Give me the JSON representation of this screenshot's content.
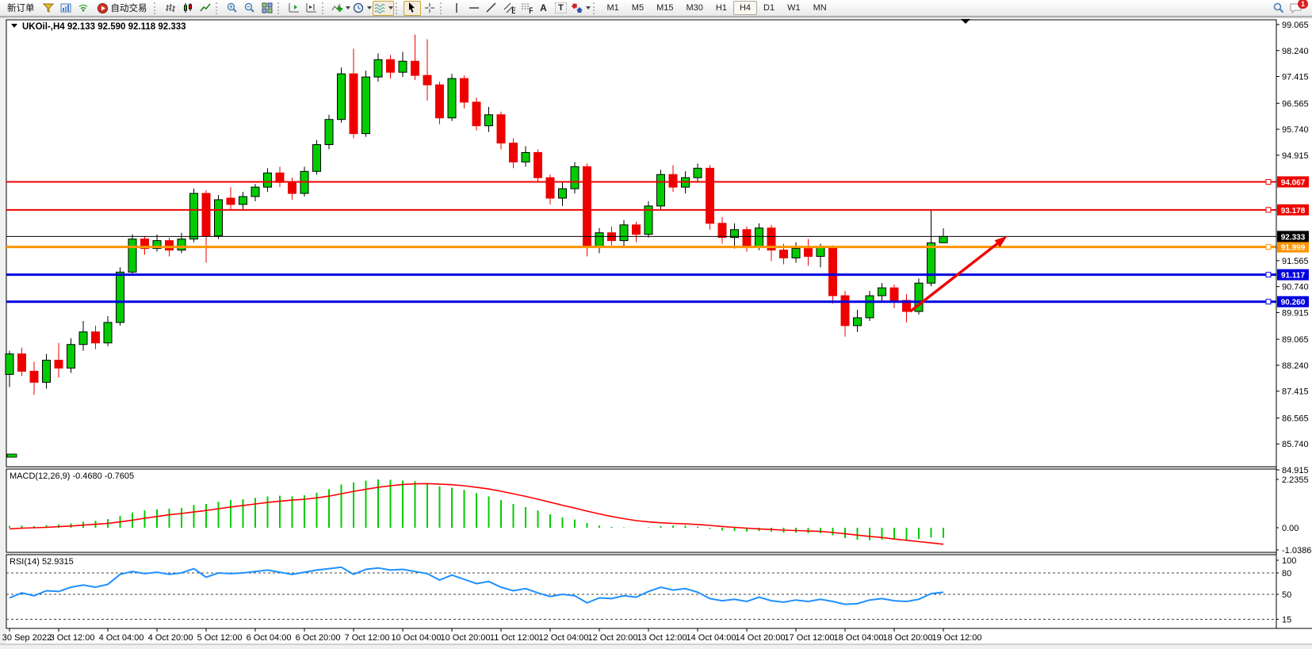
{
  "toolbar": {
    "new_order": "新订单",
    "auto_trading": "自动交易",
    "timeframes": [
      "M1",
      "M5",
      "M15",
      "M30",
      "H1",
      "H4",
      "D1",
      "W1",
      "MN"
    ],
    "active_timeframe": "H4",
    "badge_count": "1",
    "text_tool": "A",
    "label_tool": "T",
    "channel_tool": "E",
    "fibo_tool": "F"
  },
  "chart_data": {
    "type": "candlestick",
    "symbol": "UKOil-",
    "timeframe": "H4",
    "title_line": "UKOil-,H4  92.133 92.590 92.118 92.333",
    "ohlc_legend": {
      "open": 92.133,
      "high": 92.59,
      "low": 92.118,
      "close": 92.333
    },
    "ylim": [
      84.915,
      99.065
    ],
    "price_ticks": [
      "99.065",
      "98.240",
      "97.415",
      "96.565",
      "95.740",
      "94.915",
      "91.565",
      "90.740",
      "89.915",
      "89.065",
      "88.240",
      "87.415",
      "86.565",
      "85.740",
      "84.915"
    ],
    "x_labels": [
      "30 Sep 2022",
      "3 Oct 12:00",
      "4 Oct 04:00",
      "4 Oct 20:00",
      "5 Oct 12:00",
      "6 Oct 04:00",
      "6 Oct 20:00",
      "7 Oct 12:00",
      "10 Oct 04:00",
      "10 Oct 20:00",
      "11 Oct 12:00",
      "12 Oct 04:00",
      "12 Oct 20:00",
      "13 Oct 12:00",
      "14 Oct 04:00",
      "14 Oct 20:00",
      "17 Oct 12:00",
      "18 Oct 04:00",
      "18 Oct 20:00",
      "19 Oct 12:00"
    ],
    "bars_per_label": 4,
    "candles": [
      [
        87.95,
        88.7,
        87.55,
        88.6
      ],
      [
        88.6,
        88.8,
        87.9,
        88.05
      ],
      [
        88.05,
        88.35,
        87.3,
        87.7
      ],
      [
        87.7,
        88.6,
        87.5,
        88.4
      ],
      [
        88.4,
        88.95,
        87.85,
        88.15
      ],
      [
        88.15,
        89.1,
        88.0,
        88.9
      ],
      [
        88.9,
        89.65,
        88.7,
        89.3
      ],
      [
        89.3,
        89.5,
        88.75,
        88.95
      ],
      [
        88.95,
        89.8,
        88.85,
        89.6
      ],
      [
        89.6,
        91.35,
        89.5,
        91.2
      ],
      [
        91.2,
        92.4,
        91.1,
        92.25
      ],
      [
        92.25,
        92.35,
        91.75,
        91.95
      ],
      [
        91.95,
        92.4,
        91.85,
        92.2
      ],
      [
        92.2,
        92.3,
        91.7,
        91.9
      ],
      [
        91.9,
        92.45,
        91.8,
        92.25
      ],
      [
        92.25,
        93.85,
        92.15,
        93.7
      ],
      [
        93.7,
        93.8,
        91.5,
        92.35
      ],
      [
        92.35,
        93.65,
        92.25,
        93.5
      ],
      [
        93.55,
        93.9,
        93.2,
        93.35
      ],
      [
        93.35,
        93.75,
        93.15,
        93.6
      ],
      [
        93.6,
        94.0,
        93.45,
        93.9
      ],
      [
        93.9,
        94.5,
        93.75,
        94.35
      ],
      [
        94.35,
        94.55,
        93.9,
        94.05
      ],
      [
        94.05,
        94.2,
        93.5,
        93.7
      ],
      [
        93.7,
        94.55,
        93.6,
        94.4
      ],
      [
        94.4,
        95.4,
        94.3,
        95.25
      ],
      [
        95.25,
        96.2,
        95.1,
        96.05
      ],
      [
        96.05,
        97.7,
        95.95,
        97.5
      ],
      [
        97.5,
        98.3,
        95.45,
        95.6
      ],
      [
        95.6,
        97.6,
        95.5,
        97.4
      ],
      [
        97.4,
        98.15,
        97.25,
        97.95
      ],
      [
        97.95,
        98.1,
        97.35,
        97.55
      ],
      [
        97.55,
        98.2,
        97.4,
        97.9
      ],
      [
        97.9,
        98.75,
        97.3,
        97.45
      ],
      [
        97.45,
        98.6,
        96.65,
        97.15
      ],
      [
        97.15,
        97.25,
        95.9,
        96.1
      ],
      [
        96.1,
        97.5,
        96.0,
        97.35
      ],
      [
        97.35,
        97.45,
        96.4,
        96.6
      ],
      [
        96.6,
        96.75,
        95.7,
        95.85
      ],
      [
        95.85,
        96.45,
        95.65,
        96.2
      ],
      [
        96.2,
        96.3,
        95.1,
        95.3
      ],
      [
        95.3,
        95.45,
        94.5,
        94.7
      ],
      [
        94.7,
        95.2,
        94.55,
        95.0
      ],
      [
        95.0,
        95.1,
        94.05,
        94.2
      ],
      [
        94.2,
        94.3,
        93.35,
        93.55
      ],
      [
        93.55,
        94.05,
        93.3,
        93.85
      ],
      [
        93.85,
        94.7,
        93.7,
        94.55
      ],
      [
        94.55,
        94.65,
        91.7,
        92.0
      ],
      [
        92.0,
        92.6,
        91.8,
        92.45
      ],
      [
        92.45,
        92.65,
        92.05,
        92.2
      ],
      [
        92.2,
        92.85,
        92.0,
        92.7
      ],
      [
        92.7,
        92.8,
        92.15,
        92.4
      ],
      [
        92.4,
        93.45,
        92.3,
        93.3
      ],
      [
        93.3,
        94.45,
        93.2,
        94.3
      ],
      [
        94.3,
        94.6,
        93.75,
        93.9
      ],
      [
        93.9,
        94.4,
        93.7,
        94.2
      ],
      [
        94.2,
        94.65,
        94.05,
        94.5
      ],
      [
        94.5,
        94.6,
        92.55,
        92.75
      ],
      [
        92.75,
        92.95,
        92.1,
        92.3
      ],
      [
        92.3,
        92.75,
        91.95,
        92.55
      ],
      [
        92.55,
        92.65,
        91.85,
        92.0
      ],
      [
        92.0,
        92.75,
        91.9,
        92.6
      ],
      [
        92.6,
        92.7,
        91.55,
        91.9
      ],
      [
        91.9,
        92.1,
        91.45,
        91.65
      ],
      [
        91.65,
        92.15,
        91.5,
        91.95
      ],
      [
        91.95,
        92.25,
        91.4,
        91.7
      ],
      [
        91.7,
        92.1,
        91.35,
        92.0
      ],
      [
        92.0,
        92.05,
        90.2,
        90.45
      ],
      [
        90.45,
        90.6,
        89.15,
        89.5
      ],
      [
        89.5,
        90.0,
        89.3,
        89.75
      ],
      [
        89.75,
        90.6,
        89.65,
        90.45
      ],
      [
        90.45,
        90.85,
        90.25,
        90.7
      ],
      [
        90.7,
        90.8,
        90.05,
        90.3
      ],
      [
        90.3,
        90.5,
        89.6,
        89.95
      ],
      [
        89.95,
        91.0,
        89.85,
        90.85
      ],
      [
        90.85,
        93.16,
        90.75,
        92.13
      ],
      [
        92.133,
        92.59,
        92.118,
        92.333
      ]
    ],
    "hlines": [
      {
        "price": 94.067,
        "tag": "94.067",
        "color": "#F00000",
        "width": 2
      },
      {
        "price": 93.178,
        "tag": "93.178",
        "color": "#F00000",
        "width": 2
      },
      {
        "price": 91.999,
        "tag": "91.999",
        "color": "#FF9500",
        "width": 3
      },
      {
        "price": 91.117,
        "tag": "91.117",
        "color": "#0000E0",
        "width": 3
      },
      {
        "price": 90.26,
        "tag": "90.260",
        "color": "#0000E0",
        "width": 3
      }
    ],
    "current_price": {
      "price": 92.333,
      "tag": "92.333",
      "color": "#000000"
    },
    "indicators": {
      "macd": {
        "label": "MACD(12,26,9) -0.4680 -0.7605",
        "params": "12,26,9",
        "main_value": -0.468,
        "signal_value": -0.7605,
        "axis_ticks": [
          "2.2355",
          "0.00",
          "-1.0386"
        ],
        "histogram": [
          0.08,
          0.1,
          0.08,
          0.12,
          0.15,
          0.2,
          0.28,
          0.32,
          0.4,
          0.55,
          0.7,
          0.8,
          0.85,
          0.88,
          0.92,
          1.05,
          1.1,
          1.2,
          1.28,
          1.32,
          1.38,
          1.45,
          1.48,
          1.45,
          1.5,
          1.62,
          1.78,
          2.0,
          2.1,
          2.18,
          2.2355,
          2.22,
          2.18,
          2.15,
          2.05,
          1.92,
          1.85,
          1.75,
          1.6,
          1.45,
          1.28,
          1.1,
          0.95,
          0.8,
          0.62,
          0.48,
          0.38,
          0.22,
          0.1,
          0.04,
          0.02,
          0.0,
          0.02,
          0.08,
          0.1,
          0.1,
          0.05,
          -0.05,
          -0.12,
          -0.15,
          -0.18,
          -0.15,
          -0.18,
          -0.22,
          -0.22,
          -0.25,
          -0.25,
          -0.35,
          -0.48,
          -0.55,
          -0.58,
          -0.55,
          -0.52,
          -0.55,
          -0.52,
          -0.45,
          -0.468
        ],
        "signal": [
          -0.05,
          -0.02,
          0.0,
          0.02,
          0.05,
          0.08,
          0.12,
          0.16,
          0.2,
          0.27,
          0.35,
          0.44,
          0.52,
          0.6,
          0.66,
          0.73,
          0.8,
          0.88,
          0.96,
          1.03,
          1.1,
          1.17,
          1.23,
          1.28,
          1.32,
          1.38,
          1.46,
          1.57,
          1.68,
          1.78,
          1.87,
          1.94,
          2.0,
          2.03,
          2.04,
          2.02,
          1.99,
          1.94,
          1.87,
          1.79,
          1.69,
          1.57,
          1.45,
          1.32,
          1.18,
          1.04,
          0.91,
          0.77,
          0.64,
          0.52,
          0.42,
          0.33,
          0.27,
          0.23,
          0.2,
          0.18,
          0.15,
          0.11,
          0.06,
          0.02,
          -0.02,
          -0.05,
          -0.08,
          -0.11,
          -0.13,
          -0.15,
          -0.17,
          -0.22,
          -0.28,
          -0.34,
          -0.4,
          -0.45,
          -0.52,
          -0.58,
          -0.64,
          -0.7,
          -0.7605
        ]
      },
      "rsi": {
        "label": "RSI(14) 52.9315",
        "period": 14,
        "value": 52.9315,
        "axis_ticks": [
          "100",
          "80",
          "50",
          "15"
        ],
        "levels": [
          80,
          50,
          15
        ],
        "values": [
          45,
          52,
          48,
          55,
          54,
          60,
          63,
          60,
          64,
          78,
          82,
          79,
          81,
          78,
          80,
          86,
          74,
          80,
          79,
          80,
          82,
          84,
          81,
          78,
          81,
          84,
          86,
          88,
          78,
          85,
          87,
          84,
          85,
          82,
          79,
          70,
          77,
          71,
          65,
          68,
          60,
          55,
          58,
          52,
          47,
          50,
          48,
          38,
          45,
          44,
          48,
          46,
          54,
          60,
          56,
          58,
          53,
          44,
          41,
          43,
          40,
          46,
          41,
          39,
          42,
          40,
          43,
          40,
          36,
          37,
          42,
          44,
          41,
          40,
          43,
          51,
          52.9315
        ]
      }
    },
    "annotations": [
      {
        "type": "arrow",
        "from_bar": 73.3,
        "from_price": 89.95,
        "to_bar": 81.2,
        "to_price": 92.35,
        "color": "#F00000"
      }
    ]
  },
  "colors": {
    "bull": "#00CC00",
    "bear": "#EE0000",
    "wick_up": "#000000",
    "wick_down": "#EE0000",
    "macd_hist": "#00CC00",
    "macd_signal": "#FF0000",
    "rsi_line": "#1E90FF"
  }
}
